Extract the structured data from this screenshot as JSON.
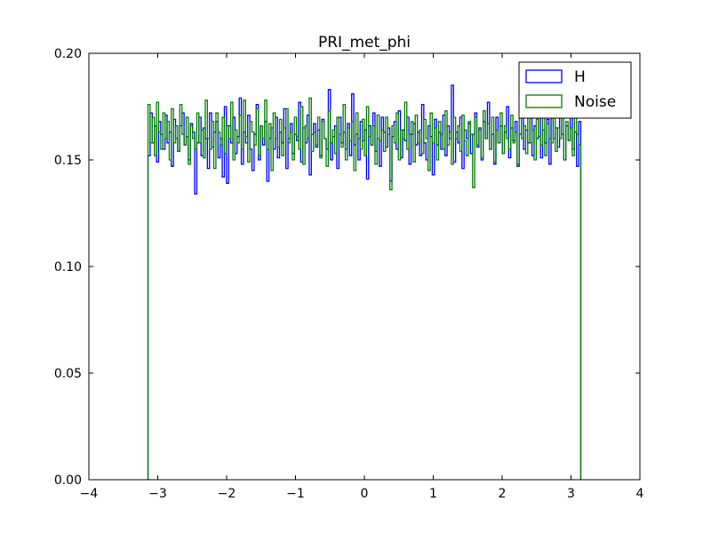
{
  "chart_data": {
    "type": "line",
    "title": "PRI_met_phi",
    "xlabel": "",
    "ylabel": "",
    "xlim": [
      -4,
      4
    ],
    "ylim": [
      0.0,
      0.2
    ],
    "x_ticks": [
      "−4",
      "−3",
      "−2",
      "−1",
      "0",
      "1",
      "2",
      "3",
      "4"
    ],
    "y_ticks": [
      "0.00",
      "0.05",
      "0.10",
      "0.15",
      "0.20"
    ],
    "x_tick_values": [
      -4,
      -3,
      -2,
      -1,
      0,
      1,
      2,
      3,
      4
    ],
    "y_tick_values": [
      0.0,
      0.05,
      0.1,
      0.15,
      0.2
    ],
    "grid": false,
    "legend_position": "top-right",
    "histogram_range": [
      -3.1416,
      3.1416
    ],
    "bins": 200,
    "series": [
      {
        "name": "H",
        "color": "#0000ff",
        "style": "step",
        "values": [
          0.152,
          0.172,
          0.158,
          0.166,
          0.149,
          0.168,
          0.162,
          0.155,
          0.171,
          0.158,
          0.163,
          0.147,
          0.169,
          0.16,
          0.154,
          0.166,
          0.172,
          0.157,
          0.161,
          0.15,
          0.167,
          0.163,
          0.134,
          0.158,
          0.17,
          0.152,
          0.165,
          0.16,
          0.146,
          0.172,
          0.156,
          0.163,
          0.168,
          0.151,
          0.16,
          0.142,
          0.175,
          0.139,
          0.166,
          0.158,
          0.17,
          0.153,
          0.161,
          0.179,
          0.148,
          0.163,
          0.158,
          0.171,
          0.155,
          0.145,
          0.162,
          0.176,
          0.15,
          0.166,
          0.157,
          0.168,
          0.14,
          0.16,
          0.165,
          0.155,
          0.17,
          0.151,
          0.163,
          0.158,
          0.174,
          0.146,
          0.16,
          0.167,
          0.153,
          0.162,
          0.159,
          0.177,
          0.149,
          0.165,
          0.158,
          0.171,
          0.143,
          0.162,
          0.167,
          0.156,
          0.164,
          0.152,
          0.169,
          0.16,
          0.155,
          0.183,
          0.15,
          0.161,
          0.166,
          0.146,
          0.17,
          0.158,
          0.163,
          0.155,
          0.167,
          0.152,
          0.181,
          0.157,
          0.162,
          0.15,
          0.168,
          0.159,
          0.164,
          0.141,
          0.166,
          0.157,
          0.172,
          0.154,
          0.16,
          0.147,
          0.17,
          0.163,
          0.156,
          0.165,
          0.14,
          0.161,
          0.168,
          0.155,
          0.173,
          0.151,
          0.164,
          0.159,
          0.17,
          0.148,
          0.162,
          0.167,
          0.157,
          0.163,
          0.152,
          0.176,
          0.158,
          0.15,
          0.166,
          0.161,
          0.143,
          0.169,
          0.157,
          0.163,
          0.155,
          0.171,
          0.152,
          0.166,
          0.16,
          0.185,
          0.149,
          0.163,
          0.158,
          0.17,
          0.146,
          0.164,
          0.16,
          0.167,
          0.153,
          0.162,
          0.172,
          0.156,
          0.165,
          0.15,
          0.168,
          0.16,
          0.177,
          0.155,
          0.162,
          0.148,
          0.17,
          0.158,
          0.166,
          0.153,
          0.163,
          0.175,
          0.151,
          0.165,
          0.159,
          0.168,
          0.147,
          0.162,
          0.172,
          0.155,
          0.164,
          0.158,
          0.17,
          0.152,
          0.166,
          0.16,
          0.186,
          0.151,
          0.164,
          0.158,
          0.169,
          0.148,
          0.172,
          0.16,
          0.165,
          0.156,
          0.17,
          0.162,
          0.15,
          0.166,
          0.159,
          0.173,
          0.155,
          0.163,
          0.147,
          0.168
        ]
      },
      {
        "name": "Noise",
        "color": "#008000",
        "style": "step",
        "values": [
          0.176,
          0.158,
          0.17,
          0.152,
          0.177,
          0.163,
          0.155,
          0.172,
          0.16,
          0.168,
          0.15,
          0.174,
          0.158,
          0.166,
          0.154,
          0.176,
          0.162,
          0.157,
          0.17,
          0.148,
          0.166,
          0.16,
          0.155,
          0.172,
          0.158,
          0.164,
          0.151,
          0.178,
          0.16,
          0.155,
          0.168,
          0.146,
          0.172,
          0.163,
          0.157,
          0.17,
          0.153,
          0.166,
          0.16,
          0.177,
          0.15,
          0.164,
          0.158,
          0.171,
          0.155,
          0.178,
          0.161,
          0.149,
          0.168,
          0.163,
          0.157,
          0.174,
          0.152,
          0.166,
          0.16,
          0.178,
          0.155,
          0.167,
          0.145,
          0.172,
          0.16,
          0.156,
          0.169,
          0.152,
          0.165,
          0.174,
          0.158,
          0.163,
          0.15,
          0.17,
          0.161,
          0.155,
          0.175,
          0.148,
          0.166,
          0.16,
          0.179,
          0.154,
          0.163,
          0.157,
          0.17,
          0.151,
          0.168,
          0.16,
          0.147,
          0.173,
          0.158,
          0.164,
          0.153,
          0.17,
          0.162,
          0.156,
          0.176,
          0.15,
          0.165,
          0.159,
          0.168,
          0.145,
          0.172,
          0.16,
          0.155,
          0.169,
          0.152,
          0.175,
          0.161,
          0.157,
          0.166,
          0.148,
          0.171,
          0.159,
          0.164,
          0.154,
          0.17,
          0.162,
          0.136,
          0.166,
          0.158,
          0.172,
          0.15,
          0.164,
          0.16,
          0.177,
          0.155,
          0.162,
          0.168,
          0.149,
          0.171,
          0.158,
          0.164,
          0.153,
          0.169,
          0.16,
          0.145,
          0.172,
          0.158,
          0.165,
          0.15,
          0.168,
          0.162,
          0.155,
          0.173,
          0.157,
          0.163,
          0.148,
          0.17,
          0.16,
          0.166,
          0.154,
          0.171,
          0.159,
          0.152,
          0.168,
          0.162,
          0.137,
          0.17,
          0.157,
          0.164,
          0.151,
          0.173,
          0.16,
          0.167,
          0.155,
          0.17,
          0.149,
          0.164,
          0.158,
          0.172,
          0.153,
          0.166,
          0.16,
          0.155,
          0.171,
          0.158,
          0.163,
          0.148,
          0.174,
          0.16,
          0.166,
          0.153,
          0.17,
          0.158,
          0.164,
          0.15,
          0.169,
          0.161,
          0.157,
          0.173,
          0.152,
          0.167,
          0.16,
          0.158,
          0.17,
          0.154,
          0.165,
          0.16,
          0.172,
          0.15,
          0.168,
          0.159,
          0.165,
          0.152,
          0.17,
          0.162,
          0.157
        ]
      }
    ]
  }
}
